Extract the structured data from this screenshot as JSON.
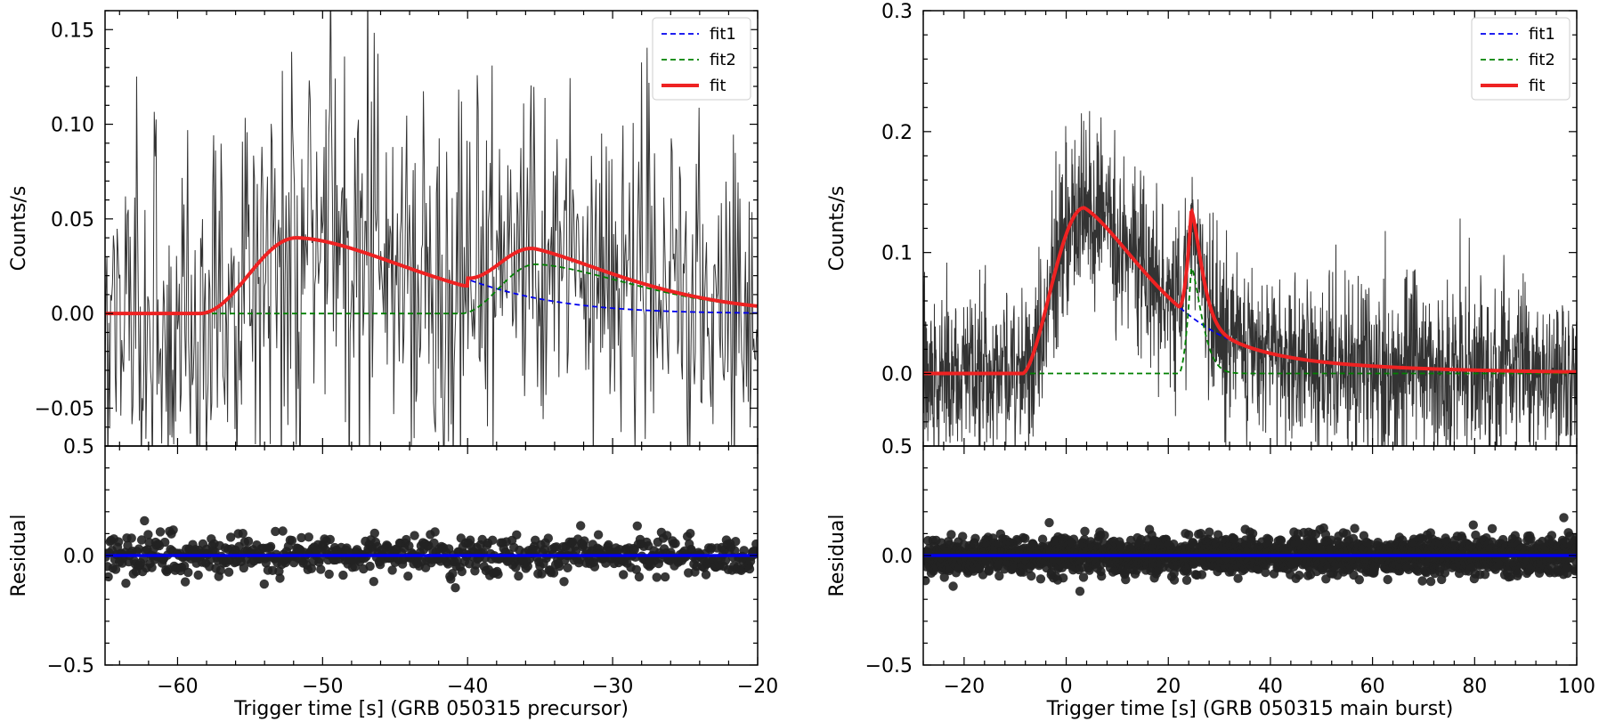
{
  "chart_data": [
    {
      "type": "line",
      "panel": "precursor",
      "xlabel": "Trigger time [s] (GRB 050315 precursor)",
      "xlim": [
        -65,
        -20
      ],
      "xticks": [
        -60,
        -50,
        -40,
        -30,
        -20
      ],
      "xtick_labels": [
        "−60",
        "−50",
        "−40",
        "−30",
        "−20"
      ],
      "top": {
        "ylabel": "Counts/s",
        "ylim": [
          -0.07,
          0.16
        ],
        "yticks": [
          -0.05,
          0.0,
          0.05,
          0.1,
          0.15
        ],
        "ytick_labels": [
          "−0.05",
          "0.00",
          "0.05",
          "0.10",
          "0.15"
        ],
        "top_tick_label": "0.5",
        "data_series": {
          "color": "#333333",
          "x_start": -65,
          "x_end": -20,
          "dx": 0.064,
          "noise_sigma": 0.045
        },
        "legend": {
          "location": "upper right",
          "entries": [
            {
              "label": "fit1",
              "color": "#0000ee",
              "style": "dashed"
            },
            {
              "label": "fit2",
              "color": "#008000",
              "style": "dashed"
            },
            {
              "label": "fit",
              "color": "#ee2222",
              "style": "solid"
            }
          ]
        },
        "components": [
          {
            "name": "fit1",
            "onset": -58.5,
            "peak": -51.8,
            "amplitude": 0.04,
            "decay_tail": 0.004
          },
          {
            "name": "fit2",
            "onset": -40.5,
            "peak": -35.3,
            "amplitude": 0.026,
            "decay_tail": 0.0
          }
        ]
      },
      "bottom": {
        "ylabel": "Residual",
        "ylim": [
          -0.5,
          0.5
        ],
        "yticks": [
          -0.5,
          0.0,
          0.5
        ],
        "ytick_labels": [
          "−0.5",
          "0.0",
          "0.5"
        ],
        "zero_line_color": "#0000ee",
        "residual_sigma": 0.045,
        "residual_range": [
          -0.2,
          0.2
        ]
      }
    },
    {
      "type": "line",
      "panel": "main burst",
      "xlabel": "Trigger time [s] (GRB 050315 main burst)",
      "xlim": [
        -28,
        100
      ],
      "xticks": [
        -20,
        0,
        20,
        40,
        60,
        80,
        100
      ],
      "xtick_labels": [
        "−20",
        "0",
        "20",
        "40",
        "60",
        "80",
        "100"
      ],
      "top": {
        "ylabel": "Counts/s",
        "ylim": [
          -0.06,
          0.3
        ],
        "yticks": [
          0.0,
          0.1,
          0.2,
          0.3
        ],
        "ytick_labels": [
          "0.0",
          "0.1",
          "0.2",
          "0.3"
        ],
        "top_tick_label": "0.5",
        "data_series": {
          "color": "#333333",
          "x_start": -28,
          "x_end": 100,
          "dx": 0.064,
          "noise_sigma": 0.032
        },
        "legend": {
          "location": "upper right",
          "entries": [
            {
              "label": "fit1",
              "color": "#0000ee",
              "style": "dashed"
            },
            {
              "label": "fit2",
              "color": "#008000",
              "style": "dashed"
            },
            {
              "label": "fit",
              "color": "#ee2222",
              "style": "solid"
            }
          ]
        },
        "components": [
          {
            "name": "fit1",
            "onset": -8.5,
            "peak": 3.5,
            "amplitude": 0.137,
            "decay_tail": 0.0
          },
          {
            "name": "fit2",
            "onset": 22.0,
            "peak": 24.5,
            "amplitude": 0.088,
            "decay_tail": 0.0
          }
        ]
      },
      "bottom": {
        "ylabel": "Residual",
        "ylim": [
          -0.5,
          0.5
        ],
        "yticks": [
          -0.5,
          0.0,
          0.5
        ],
        "ytick_labels": [
          "−0.5",
          "0.0",
          "0.5"
        ],
        "zero_line_color": "#0000ee",
        "residual_sigma": 0.045,
        "residual_range": [
          -0.2,
          0.2
        ]
      }
    }
  ]
}
